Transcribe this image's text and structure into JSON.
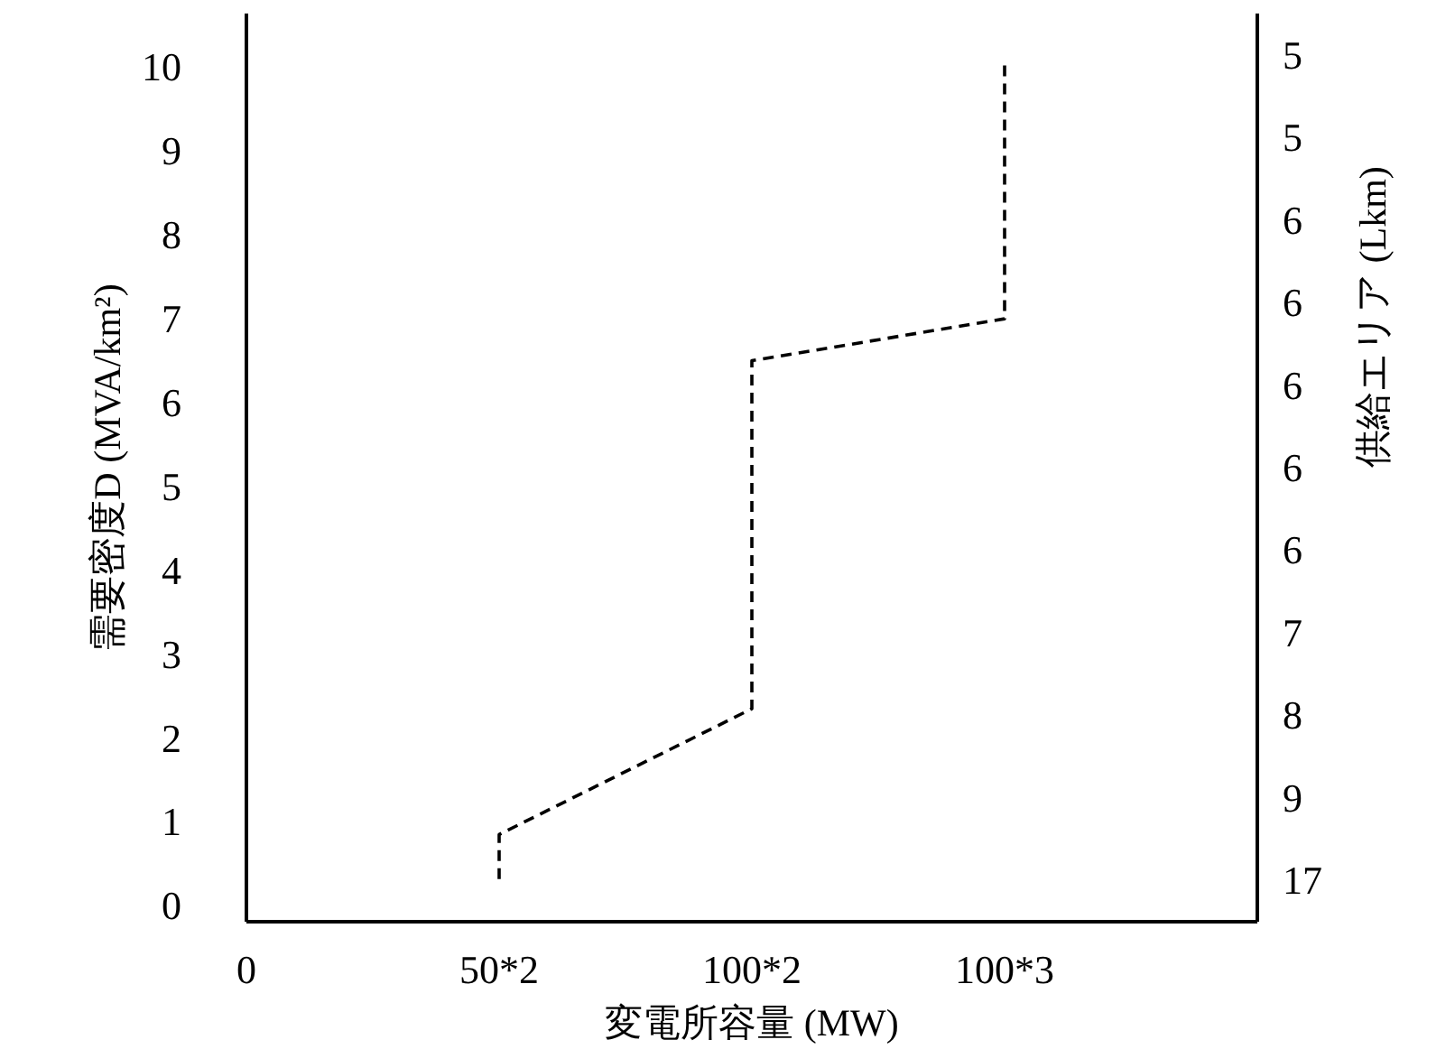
{
  "chart_data": {
    "type": "line",
    "xlabel": "変電所容量 (MW)",
    "ylabel": "需要密度D (MVA/km²)",
    "y2label": "供給エリア (Lkm)",
    "categories": [
      "0",
      "50*2",
      "100*2",
      "100*3"
    ],
    "y2_categories": [
      "5",
      "5",
      "6",
      "6",
      "6",
      "6",
      "6",
      "7",
      "8",
      "9",
      "17"
    ],
    "series": [
      {
        "color": "#000000",
        "x": [
          "50*2",
          "50*2",
          "100*2",
          "100*2",
          "100*3",
          "100*3"
        ],
        "values": [
          0.32,
          0.85,
          2.35,
          6.5,
          7.0,
          10.1
        ]
      }
    ],
    "line_style": "dashed",
    "marker": "none",
    "grid": false,
    "ylim": [
      -0.19,
      10.64
    ],
    "yticks": [
      0,
      1,
      2,
      3,
      4,
      5,
      6,
      7,
      8,
      9,
      10
    ]
  }
}
